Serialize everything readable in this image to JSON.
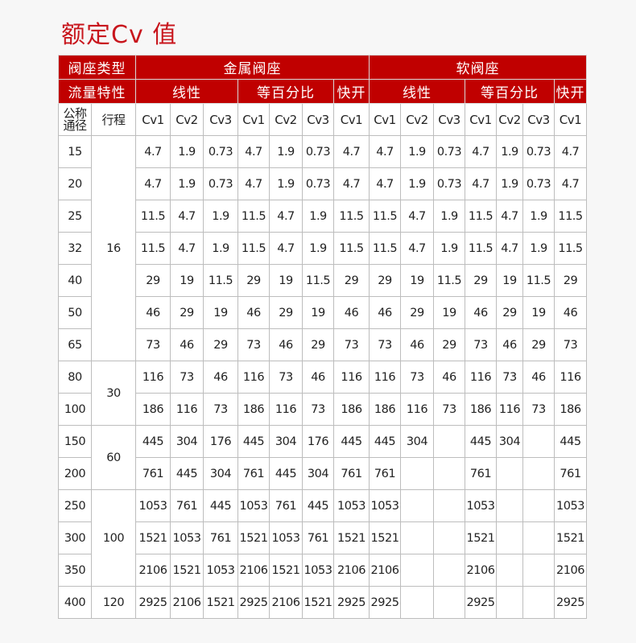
{
  "title": "额定Cv 值",
  "colors": {
    "title": "#c8161d",
    "header_bg": "#c00000"
  },
  "header": {
    "seat_type_label": "阀座类型",
    "metal_seat": "金属阀座",
    "soft_seat": "软阀座",
    "flow_char_label": "流量特性",
    "linear": "线性",
    "equal_percent": "等百分比",
    "quick_open": "快开",
    "nominal_dia": "公称通径",
    "stroke": "行程",
    "cv_columns": [
      "Cv1",
      "Cv2",
      "Cv3",
      "Cv1",
      "Cv2",
      "Cv3",
      "Cv1",
      "Cv1",
      "Cv2",
      "Cv3",
      "Cv1",
      "Cv2",
      "Cv3",
      "Cv1"
    ]
  },
  "strokes": [
    {
      "value": "16",
      "rows": 7
    },
    {
      "value": "30",
      "rows": 2
    },
    {
      "value": "60",
      "rows": 2
    },
    {
      "value": "100",
      "rows": 3
    },
    {
      "value": "120",
      "rows": 1
    }
  ],
  "rows": [
    {
      "dn": "15",
      "cv": [
        "4.7",
        "1.9",
        "0.73",
        "4.7",
        "1.9",
        "0.73",
        "4.7",
        "4.7",
        "1.9",
        "0.73",
        "4.7",
        "1.9",
        "0.73",
        "4.7"
      ]
    },
    {
      "dn": "20",
      "cv": [
        "4.7",
        "1.9",
        "0.73",
        "4.7",
        "1.9",
        "0.73",
        "4.7",
        "4.7",
        "1.9",
        "0.73",
        "4.7",
        "1.9",
        "0.73",
        "4.7"
      ]
    },
    {
      "dn": "25",
      "cv": [
        "11.5",
        "4.7",
        "1.9",
        "11.5",
        "4.7",
        "1.9",
        "11.5",
        "11.5",
        "4.7",
        "1.9",
        "11.5",
        "4.7",
        "1.9",
        "11.5"
      ]
    },
    {
      "dn": "32",
      "cv": [
        "11.5",
        "4.7",
        "1.9",
        "11.5",
        "4.7",
        "1.9",
        "11.5",
        "11.5",
        "4.7",
        "1.9",
        "11.5",
        "4.7",
        "1.9",
        "11.5"
      ]
    },
    {
      "dn": "40",
      "cv": [
        "29",
        "19",
        "11.5",
        "29",
        "19",
        "11.5",
        "29",
        "29",
        "19",
        "11.5",
        "29",
        "19",
        "11.5",
        "29"
      ]
    },
    {
      "dn": "50",
      "cv": [
        "46",
        "29",
        "19",
        "46",
        "29",
        "19",
        "46",
        "46",
        "29",
        "19",
        "46",
        "29",
        "19",
        "46"
      ]
    },
    {
      "dn": "65",
      "cv": [
        "73",
        "46",
        "29",
        "73",
        "46",
        "29",
        "73",
        "73",
        "46",
        "29",
        "73",
        "46",
        "29",
        "73"
      ]
    },
    {
      "dn": "80",
      "cv": [
        "116",
        "73",
        "46",
        "116",
        "73",
        "46",
        "116",
        "116",
        "73",
        "46",
        "116",
        "73",
        "46",
        "116"
      ]
    },
    {
      "dn": "100",
      "cv": [
        "186",
        "116",
        "73",
        "186",
        "116",
        "73",
        "186",
        "186",
        "116",
        "73",
        "186",
        "116",
        "73",
        "186"
      ]
    },
    {
      "dn": "150",
      "cv": [
        "445",
        "304",
        "176",
        "445",
        "304",
        "176",
        "445",
        "445",
        "304",
        "",
        "445",
        "304",
        "",
        "445"
      ]
    },
    {
      "dn": "200",
      "cv": [
        "761",
        "445",
        "304",
        "761",
        "445",
        "304",
        "761",
        "761",
        "",
        "",
        "761",
        "",
        "",
        "761"
      ]
    },
    {
      "dn": "250",
      "cv": [
        "1053",
        "761",
        "445",
        "1053",
        "761",
        "445",
        "1053",
        "1053",
        "",
        "",
        "1053",
        "",
        "",
        "1053"
      ]
    },
    {
      "dn": "300",
      "cv": [
        "1521",
        "1053",
        "761",
        "1521",
        "1053",
        "761",
        "1521",
        "1521",
        "",
        "",
        "1521",
        "",
        "",
        "1521"
      ]
    },
    {
      "dn": "350",
      "cv": [
        "2106",
        "1521",
        "1053",
        "2106",
        "1521",
        "1053",
        "2106",
        "2106",
        "",
        "",
        "2106",
        "",
        "",
        "2106"
      ]
    },
    {
      "dn": "400",
      "cv": [
        "2925",
        "2106",
        "1521",
        "2925",
        "2106",
        "1521",
        "2925",
        "2925",
        "",
        "",
        "2925",
        "",
        "",
        "2925"
      ]
    }
  ]
}
